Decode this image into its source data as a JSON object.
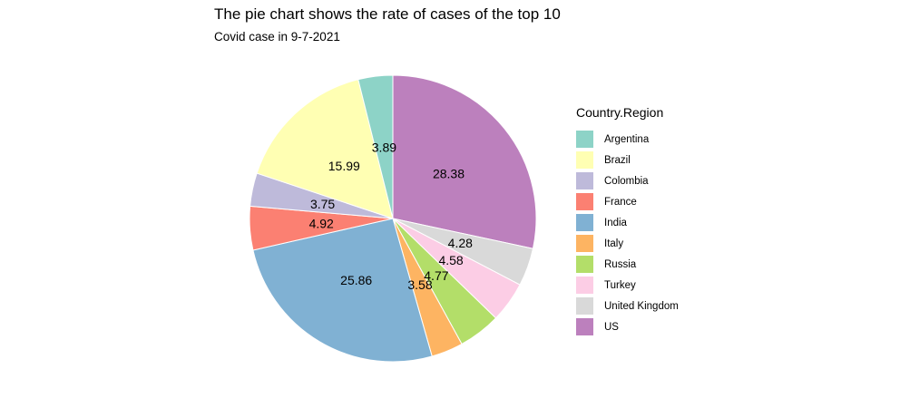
{
  "title": "The pie chart shows the rate of cases of the top 10",
  "subtitle": "Covid case in 9-7-2021",
  "legend": {
    "title": "Country.Region",
    "position": "right"
  },
  "chart_data": {
    "type": "pie",
    "title": "The pie chart shows the rate of cases of the top 10",
    "subtitle": "Covid case in 9-7-2021",
    "legend_title": "Country.Region",
    "slices": [
      {
        "label": "Argentina",
        "value": 3.89,
        "color": "#8DD3C7"
      },
      {
        "label": "Brazil",
        "value": 15.99,
        "color": "#FFFFB3"
      },
      {
        "label": "Colombia",
        "value": 3.75,
        "color": "#BEBADA"
      },
      {
        "label": "France",
        "value": 4.92,
        "color": "#FB8072"
      },
      {
        "label": "India",
        "value": 25.86,
        "color": "#80B1D3"
      },
      {
        "label": "Italy",
        "value": 3.58,
        "color": "#FDB462"
      },
      {
        "label": "Russia",
        "value": 4.77,
        "color": "#B3DE69"
      },
      {
        "label": "Turkey",
        "value": 4.58,
        "color": "#FCCDE5"
      },
      {
        "label": "United Kingdom",
        "value": 4.28,
        "color": "#D9D9D9"
      },
      {
        "label": "US",
        "value": 28.38,
        "color": "#BC80BD"
      }
    ]
  }
}
